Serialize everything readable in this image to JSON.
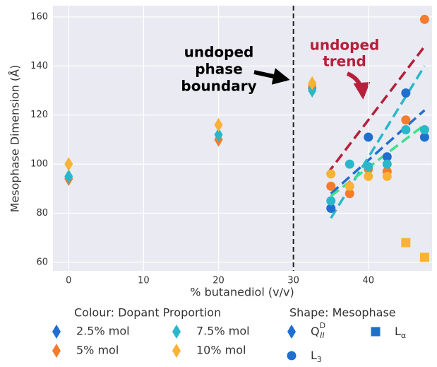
{
  "chart_data": {
    "type": "scatter",
    "xlabel": "% butanediol (v/v)",
    "ylabel": "Mesophase Dimension (Å)",
    "xlim": [
      -2.1,
      48.5
    ],
    "ylim": [
      56.5,
      164.6
    ],
    "xticks": [
      0,
      10,
      20,
      30,
      40
    ],
    "yticks": [
      60,
      80,
      100,
      120,
      140,
      160
    ],
    "grid": true,
    "vline": {
      "x": 30,
      "color": "#222222"
    },
    "series": [
      {
        "name": "2.5% mol",
        "color": "#1f6fd1",
        "x": [
          0,
          20,
          32.5,
          35,
          40,
          42.5,
          45,
          47.5
        ],
        "values": [
          94,
          110,
          131,
          82,
          111,
          103,
          129,
          111
        ],
        "markers": [
          "diamond",
          "diamond",
          "diamond",
          "circle",
          "circle",
          "circle",
          "circle",
          "circle"
        ]
      },
      {
        "name": "5% mol",
        "color": "#f47c2c",
        "x": [
          0,
          20,
          32.5,
          35,
          37.5,
          40,
          42.5,
          45,
          47.5
        ],
        "values": [
          94,
          110,
          132,
          91,
          88,
          98,
          97,
          118,
          159
        ],
        "markers": [
          "diamond",
          "diamond",
          "diamond",
          "circle",
          "circle",
          "circle",
          "circle",
          "circle",
          "circle"
        ]
      },
      {
        "name": "7.5% mol",
        "color": "#2ab7c9",
        "x": [
          0,
          20,
          32.5,
          35,
          37.5,
          40,
          42.5,
          45,
          47.5
        ],
        "values": [
          95,
          112,
          130,
          85,
          100,
          99,
          100,
          114,
          114
        ],
        "markers": [
          "diamond",
          "diamond",
          "diamond",
          "circle",
          "circle",
          "circle",
          "circle",
          "circle",
          "circle"
        ]
      },
      {
        "name": "10% mol",
        "color": "#f9b234",
        "x": [
          0,
          20,
          32.5,
          35,
          37.5,
          40,
          42.5,
          45,
          47.5
        ],
        "values": [
          100,
          116,
          133,
          96,
          91,
          95,
          95,
          68,
          62
        ],
        "markers": [
          "diamond",
          "diamond",
          "diamond",
          "circle",
          "circle",
          "circle",
          "circle",
          "square",
          "square"
        ]
      }
    ],
    "trend_lines": [
      {
        "color": "#b5203b",
        "x": [
          34.5,
          47.5
        ],
        "values": [
          96,
          148
        ]
      },
      {
        "color": "#1f6fd1",
        "x": [
          35,
          47.5
        ],
        "values": [
          88,
          122
        ]
      },
      {
        "color": "#2ab7c9",
        "x": [
          35,
          47.5
        ],
        "values": [
          78,
          140
        ]
      },
      {
        "color": "#3de08a",
        "x": [
          35,
          47.5
        ],
        "values": [
          87,
          116
        ]
      }
    ],
    "annotations": [
      {
        "lines": [
          "undoped",
          "phase",
          "boundary"
        ],
        "color": "#000000"
      },
      {
        "lines": [
          "undoped",
          "trend"
        ],
        "color": "#b5203b"
      }
    ],
    "colour_legend_title": "Colour: Dopant Proportion",
    "shape_legend_title": "Shape: Mesophase",
    "shapes": [
      {
        "marker": "diamond",
        "base": "Q",
        "sub": "II",
        "sup": "D"
      },
      {
        "marker": "square",
        "base": "L",
        "sub": "α"
      },
      {
        "marker": "circle",
        "base": "L",
        "sub": "3"
      }
    ]
  }
}
